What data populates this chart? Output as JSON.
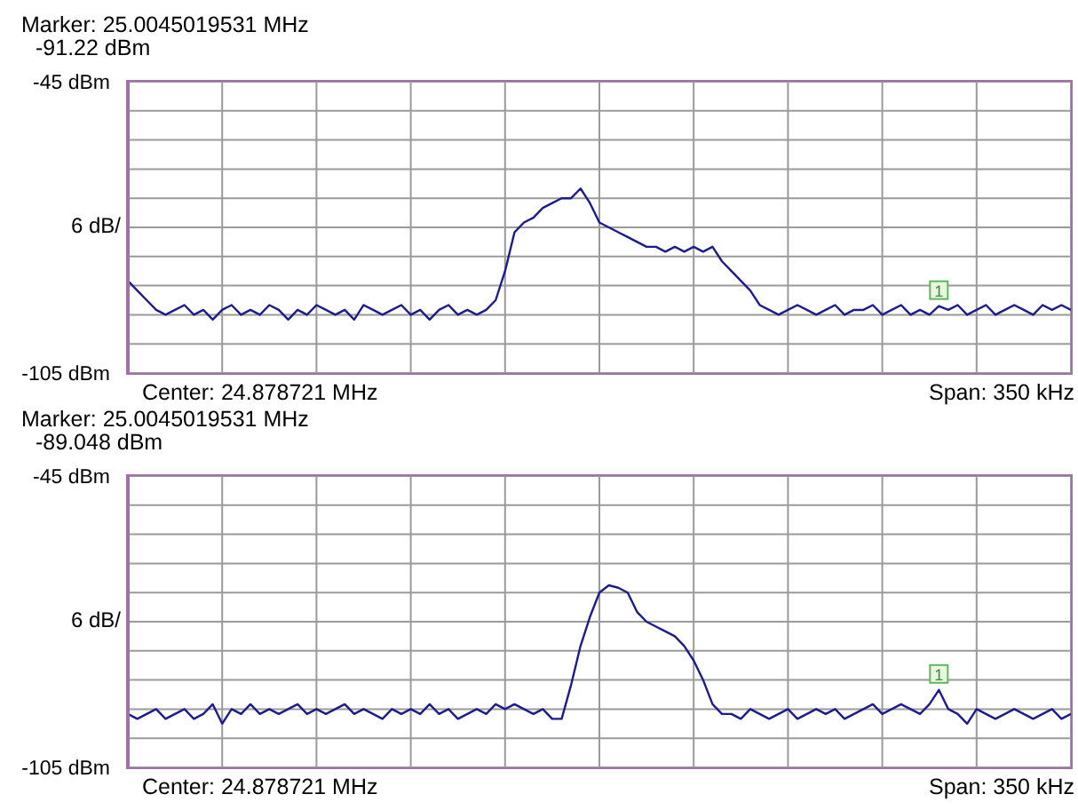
{
  "chart_data": [
    {
      "type": "line",
      "annotations": [
        "Marker: 25.0045019531 MHz",
        "-91.22 dBm",
        "Center: 24.878721 MHz",
        "Span: 350 kHz",
        {
          "text": "1",
          "y": -91.22
        }
      ],
      "categories": [
        null,
        null,
        null,
        null,
        null,
        null,
        null,
        null,
        null,
        null,
        null,
        null,
        null,
        null,
        null,
        null,
        null,
        null,
        null,
        null,
        null,
        null,
        null,
        null,
        null,
        null,
        null,
        null,
        null,
        null,
        null,
        null,
        null,
        null,
        null,
        null,
        null,
        null,
        null,
        null,
        null,
        null,
        null,
        null,
        null,
        null,
        null,
        null,
        null,
        null,
        null,
        null,
        null,
        null,
        null,
        null,
        null,
        null,
        null,
        null,
        null,
        null,
        null,
        null,
        null,
        null,
        null,
        null,
        null,
        null,
        null,
        null,
        null,
        null,
        null,
        null,
        null,
        null,
        null,
        null,
        null,
        null,
        null,
        null,
        null,
        null,
        null,
        null,
        null,
        null,
        null,
        null,
        null,
        null,
        null,
        null,
        null,
        null,
        null,
        null,
        null
      ],
      "series": [
        {
          "color": "#1c1c8a",
          "values": [
            -86,
            -88,
            -90,
            -92,
            -93,
            -92,
            -91,
            -93,
            -92,
            -94,
            -92,
            -91,
            -93,
            -92,
            -93,
            -91,
            -92,
            -94,
            -92,
            -93,
            -91,
            -92,
            -93,
            -92,
            -94,
            -91,
            -92,
            -93,
            -92,
            -91,
            -93,
            -92,
            -94,
            -92,
            -91,
            -93,
            -92,
            -93,
            -92,
            -90,
            -84,
            -76,
            -74,
            -73,
            -71,
            -70,
            -69,
            -69,
            -67,
            -70,
            -74,
            -75,
            -76,
            -77,
            -78,
            -79,
            -79,
            -80,
            -79,
            -80,
            -79,
            -80,
            -79,
            -82,
            -84,
            -86,
            -88,
            -91,
            -92,
            -93,
            -92,
            -91,
            -92,
            -93,
            -92,
            -91,
            -93,
            -92,
            -92,
            -91,
            -93,
            -92,
            -91,
            -93,
            -92,
            -93,
            -91.22,
            -92,
            -91,
            -93,
            -92,
            -91,
            -93,
            -92,
            -91,
            -92,
            -93,
            -91,
            -92,
            -91,
            -92
          ]
        }
      ],
      "ylim": [
        -105,
        -45
      ],
      "yticks": [
        {
          "value": -105,
          "label": "-105 dBm"
        },
        {
          "value": -99,
          "label": null
        },
        {
          "value": -93,
          "label": null
        },
        {
          "value": -87,
          "label": null
        },
        {
          "value": -81,
          "label": null
        },
        {
          "value": -75,
          "label": null
        },
        {
          "value": -69,
          "label": null
        },
        {
          "value": -63,
          "label": null
        },
        {
          "value": -57,
          "label": null
        },
        {
          "value": -51,
          "label": null
        },
        {
          "value": -45,
          "label": "-45 dBm"
        }
      ],
      "ylabel": "6 dB/",
      "grid": true,
      "tick_labels": "y"
    },
    {
      "type": "line",
      "annotations": [
        "Marker: 25.0045019531 MHz",
        "-89.048 dBm",
        "Center: 24.878721 MHz",
        "Span: 350 kHz",
        {
          "text": "1",
          "y": -89.048
        }
      ],
      "categories": [
        null,
        null,
        null,
        null,
        null,
        null,
        null,
        null,
        null,
        null,
        null,
        null,
        null,
        null,
        null,
        null,
        null,
        null,
        null,
        null,
        null,
        null,
        null,
        null,
        null,
        null,
        null,
        null,
        null,
        null,
        null,
        null,
        null,
        null,
        null,
        null,
        null,
        null,
        null,
        null,
        null,
        null,
        null,
        null,
        null,
        null,
        null,
        null,
        null,
        null,
        null,
        null,
        null,
        null,
        null,
        null,
        null,
        null,
        null,
        null,
        null,
        null,
        null,
        null,
        null,
        null,
        null,
        null,
        null,
        null,
        null,
        null,
        null,
        null,
        null,
        null,
        null,
        null,
        null,
        null,
        null,
        null,
        null,
        null,
        null,
        null,
        null,
        null,
        null,
        null,
        null,
        null,
        null,
        null,
        null,
        null,
        null,
        null,
        null,
        null,
        null
      ],
      "series": [
        {
          "color": "#1c1c8a",
          "values": [
            -94,
            -95,
            -94,
            -93,
            -95,
            -94,
            -93,
            -95,
            -94,
            -92,
            -96,
            -93,
            -94,
            -92,
            -94,
            -93,
            -94,
            -93,
            -92,
            -94,
            -93,
            -94,
            -93,
            -92,
            -94,
            -93,
            -94,
            -95,
            -93,
            -94,
            -93,
            -94,
            -92,
            -94,
            -93,
            -95,
            -94,
            -93,
            -94,
            -92,
            -93,
            -92,
            -93,
            -94,
            -93,
            -95,
            -95,
            -88,
            -80,
            -74,
            -69,
            -67.5,
            -68,
            -69,
            -73,
            -75,
            -76,
            -77,
            -78,
            -80,
            -83,
            -87,
            -92,
            -94,
            -94,
            -95,
            -93,
            -94,
            -95,
            -94,
            -93,
            -95,
            -94,
            -93,
            -94,
            -93,
            -95,
            -94,
            -93,
            -92,
            -94,
            -93,
            -92,
            -93,
            -94,
            -92,
            -89.048,
            -93,
            -94,
            -96,
            -93,
            -94,
            -95,
            -94,
            -93,
            -94,
            -95,
            -94,
            -93,
            -95,
            -94
          ]
        }
      ],
      "ylim": [
        -105,
        -45
      ],
      "yticks": [
        {
          "value": -105,
          "label": "-105 dBm"
        },
        {
          "value": -99,
          "label": null
        },
        {
          "value": -93,
          "label": null
        },
        {
          "value": -87,
          "label": null
        },
        {
          "value": -81,
          "label": null
        },
        {
          "value": -75,
          "label": null
        },
        {
          "value": -69,
          "label": null
        },
        {
          "value": -63,
          "label": null
        },
        {
          "value": -57,
          "label": null
        },
        {
          "value": -51,
          "label": null
        },
        {
          "value": -45,
          "label": "-45 dBm"
        }
      ],
      "ylabel": "6 dB/",
      "grid": true,
      "tick_labels": "y"
    }
  ]
}
